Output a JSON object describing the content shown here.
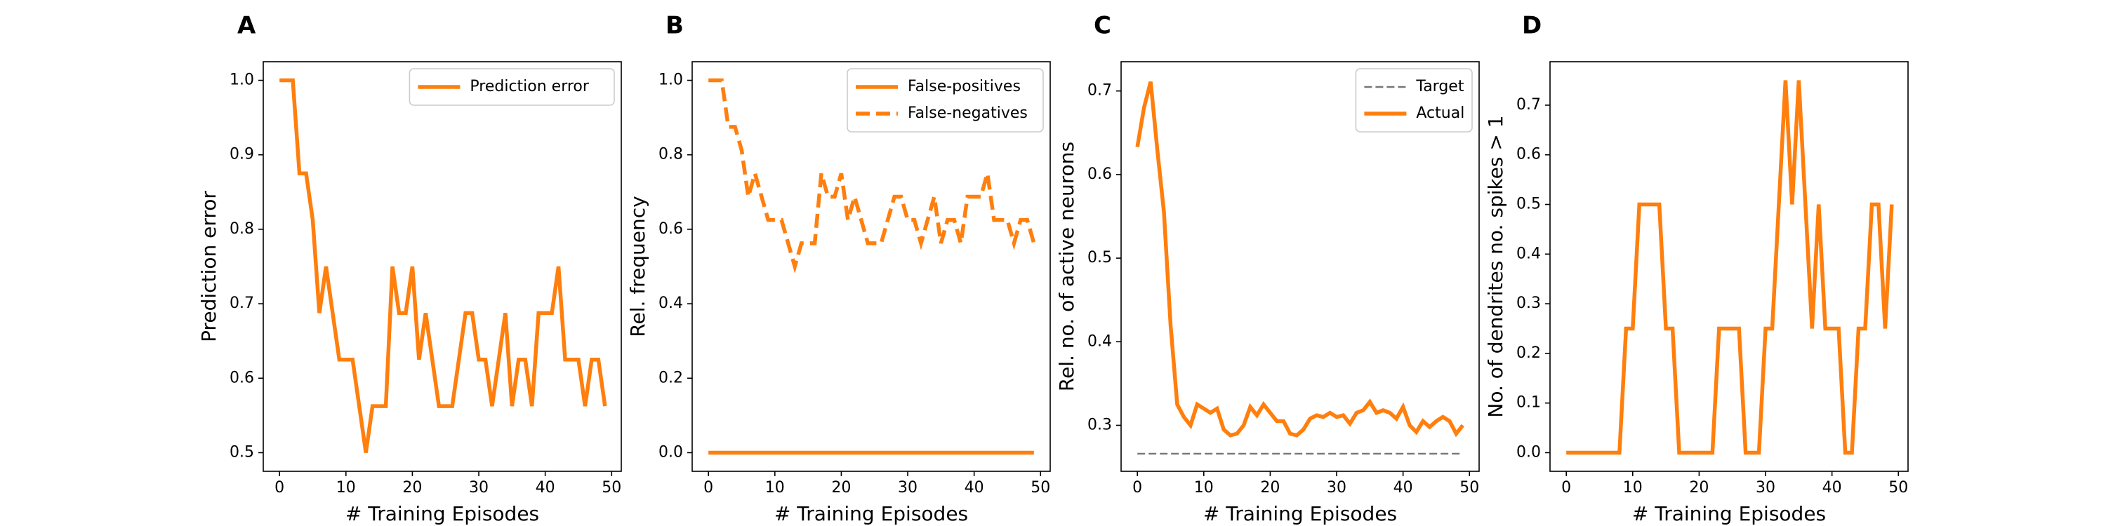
{
  "colors": {
    "orange": "#ff7f0e",
    "target": "#777777",
    "axis": "#000000"
  },
  "chart_data": [
    {
      "id": "A",
      "type": "line",
      "panel_label": "A",
      "xlabel": "# Training Episodes",
      "ylabel": "Prediction error",
      "xlim": [
        -2.45,
        51.45
      ],
      "ylim": [
        0.475,
        1.025
      ],
      "xticks": [
        0,
        10,
        20,
        30,
        40,
        50
      ],
      "xtick_labels": [
        "0",
        "10",
        "20",
        "30",
        "40",
        "50"
      ],
      "yticks": [
        0.5,
        0.6,
        0.7,
        0.8,
        0.9,
        1.0
      ],
      "ytick_labels": [
        "0.5",
        "0.6",
        "0.7",
        "0.8",
        "0.9",
        "1.0"
      ],
      "legend_position": "top-right",
      "series": [
        {
          "name": "Prediction error",
          "style": "solid",
          "color": "orange",
          "x": [
            0,
            1,
            2,
            3,
            4,
            5,
            6,
            7,
            8,
            9,
            10,
            11,
            12,
            13,
            14,
            15,
            16,
            17,
            18,
            19,
            20,
            21,
            22,
            23,
            24,
            25,
            26,
            27,
            28,
            29,
            30,
            31,
            32,
            33,
            34,
            35,
            36,
            37,
            38,
            39,
            40,
            41,
            42,
            43,
            44,
            45,
            46,
            47,
            48,
            49
          ],
          "y": [
            1.0,
            1.0,
            1.0,
            0.875,
            0.875,
            0.8125,
            0.6875,
            0.75,
            0.6875,
            0.625,
            0.625,
            0.625,
            0.5625,
            0.5,
            0.5625,
            0.5625,
            0.5625,
            0.75,
            0.6875,
            0.6875,
            0.75,
            0.625,
            0.6875,
            0.625,
            0.5625,
            0.5625,
            0.5625,
            0.625,
            0.6875,
            0.6875,
            0.625,
            0.625,
            0.5625,
            0.625,
            0.6875,
            0.5625,
            0.625,
            0.625,
            0.5625,
            0.6875,
            0.6875,
            0.6875,
            0.75,
            0.625,
            0.625,
            0.625,
            0.5625,
            0.625,
            0.625,
            0.5625
          ]
        }
      ]
    },
    {
      "id": "B",
      "type": "line",
      "panel_label": "B",
      "xlabel": "# Training Episodes",
      "ylabel": "Rel. frequency",
      "xlim": [
        -2.45,
        51.45
      ],
      "ylim": [
        -0.05,
        1.05
      ],
      "xticks": [
        0,
        10,
        20,
        30,
        40,
        50
      ],
      "xtick_labels": [
        "0",
        "10",
        "20",
        "30",
        "40",
        "50"
      ],
      "yticks": [
        0.0,
        0.2,
        0.4,
        0.6,
        0.8,
        1.0
      ],
      "ytick_labels": [
        "0.0",
        "0.2",
        "0.4",
        "0.6",
        "0.8",
        "1.0"
      ],
      "legend_position": "top-right",
      "series": [
        {
          "name": "False-positives",
          "style": "solid",
          "color": "orange",
          "x": [
            0,
            49
          ],
          "y": [
            0.0,
            0.0
          ]
        },
        {
          "name": "False-negatives",
          "style": "dashed",
          "color": "orange",
          "x": [
            0,
            1,
            2,
            3,
            4,
            5,
            6,
            7,
            8,
            9,
            10,
            11,
            12,
            13,
            14,
            15,
            16,
            17,
            18,
            19,
            20,
            21,
            22,
            23,
            24,
            25,
            26,
            27,
            28,
            29,
            30,
            31,
            32,
            33,
            34,
            35,
            36,
            37,
            38,
            39,
            40,
            41,
            42,
            43,
            44,
            45,
            46,
            47,
            48,
            49
          ],
          "y": [
            1.0,
            1.0,
            1.0,
            0.875,
            0.875,
            0.8125,
            0.6875,
            0.75,
            0.6875,
            0.625,
            0.625,
            0.625,
            0.5625,
            0.5,
            0.5625,
            0.5625,
            0.5625,
            0.75,
            0.6875,
            0.6875,
            0.75,
            0.625,
            0.6875,
            0.625,
            0.5625,
            0.5625,
            0.5625,
            0.625,
            0.6875,
            0.6875,
            0.625,
            0.625,
            0.5625,
            0.625,
            0.6875,
            0.5625,
            0.625,
            0.625,
            0.5625,
            0.6875,
            0.6875,
            0.6875,
            0.75,
            0.625,
            0.625,
            0.625,
            0.5625,
            0.625,
            0.625,
            0.5625
          ]
        }
      ]
    },
    {
      "id": "C",
      "type": "line",
      "panel_label": "C",
      "xlabel": "# Training Episodes",
      "ylabel": "Rel. no. of active neurons",
      "xlim": [
        -2.45,
        51.45
      ],
      "ylim": [
        0.245,
        0.735
      ],
      "xticks": [
        0,
        10,
        20,
        30,
        40,
        50
      ],
      "xtick_labels": [
        "0",
        "10",
        "20",
        "30",
        "40",
        "50"
      ],
      "yticks": [
        0.3,
        0.4,
        0.5,
        0.6,
        0.7
      ],
      "ytick_labels": [
        "0.3",
        "0.4",
        "0.5",
        "0.6",
        "0.7"
      ],
      "legend_position": "top-right",
      "series": [
        {
          "name": "Target",
          "style": "dashed",
          "color": "target",
          "x": [
            0,
            49
          ],
          "y": [
            0.266,
            0.266
          ]
        },
        {
          "name": "Actual",
          "style": "solid",
          "color": "orange",
          "x": [
            0,
            1,
            2,
            3,
            4,
            5,
            6,
            7,
            8,
            9,
            10,
            11,
            12,
            13,
            14,
            15,
            16,
            17,
            18,
            19,
            20,
            21,
            22,
            23,
            24,
            25,
            26,
            27,
            28,
            29,
            30,
            31,
            32,
            33,
            34,
            35,
            36,
            37,
            38,
            39,
            40,
            41,
            42,
            43,
            44,
            45,
            46,
            47,
            48,
            49
          ],
          "y": [
            0.633,
            0.68,
            0.711,
            0.63,
            0.555,
            0.42,
            0.325,
            0.31,
            0.3,
            0.325,
            0.32,
            0.315,
            0.32,
            0.295,
            0.288,
            0.29,
            0.3,
            0.322,
            0.312,
            0.325,
            0.315,
            0.305,
            0.305,
            0.29,
            0.288,
            0.295,
            0.308,
            0.312,
            0.31,
            0.315,
            0.31,
            0.312,
            0.302,
            0.315,
            0.318,
            0.328,
            0.315,
            0.318,
            0.315,
            0.308,
            0.322,
            0.3,
            0.292,
            0.305,
            0.298,
            0.305,
            0.31,
            0.305,
            0.29,
            0.3
          ]
        }
      ]
    },
    {
      "id": "D",
      "type": "line",
      "panel_label": "D",
      "xlabel": "# Training Episodes",
      "ylabel": "No. of dendrites no. spikes > 1",
      "xlim": [
        -2.45,
        51.45
      ],
      "ylim": [
        -0.0375,
        0.7875
      ],
      "xticks": [
        0,
        10,
        20,
        30,
        40,
        50
      ],
      "xtick_labels": [
        "0",
        "10",
        "20",
        "30",
        "40",
        "50"
      ],
      "yticks": [
        0.0,
        0.1,
        0.2,
        0.3,
        0.4,
        0.5,
        0.6,
        0.7
      ],
      "ytick_labels": [
        "0.0",
        "0.1",
        "0.2",
        "0.3",
        "0.4",
        "0.5",
        "0.6",
        "0.7"
      ],
      "series": [
        {
          "style": "solid",
          "color": "orange",
          "x": [
            0,
            1,
            2,
            3,
            4,
            5,
            6,
            7,
            8,
            9,
            10,
            11,
            12,
            13,
            14,
            15,
            16,
            17,
            18,
            19,
            20,
            21,
            22,
            23,
            24,
            25,
            26,
            27,
            28,
            29,
            30,
            31,
            32,
            33,
            34,
            35,
            36,
            37,
            38,
            39,
            40,
            41,
            42,
            43,
            44,
            45,
            46,
            47,
            48,
            49
          ],
          "y": [
            0,
            0,
            0,
            0,
            0,
            0,
            0,
            0,
            0,
            0.25,
            0.25,
            0.5,
            0.5,
            0.5,
            0.5,
            0.25,
            0.25,
            0,
            0,
            0,
            0,
            0,
            0,
            0.25,
            0.25,
            0.25,
            0.25,
            0,
            0,
            0,
            0.25,
            0.25,
            0.5,
            0.75,
            0.5,
            0.75,
            0.5,
            0.25,
            0.5,
            0.25,
            0.25,
            0.25,
            0,
            0,
            0.25,
            0.25,
            0.5,
            0.5,
            0.25,
            0.5
          ]
        }
      ]
    }
  ]
}
